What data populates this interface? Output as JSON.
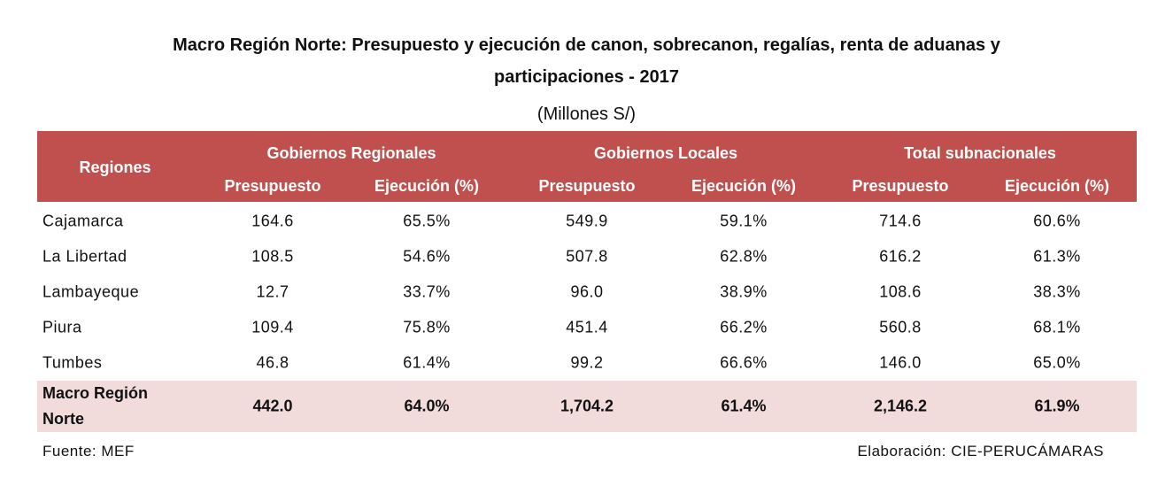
{
  "title_line1": "Macro Región Norte: Presupuesto y ejecución de canon, sobrecanon, regalías, renta de aduanas y",
  "title_line2": "participaciones - 2017",
  "subtitle": "(Millones S/)",
  "colors": {
    "header_bg": "#C0504D",
    "header_text": "#FFFFFF",
    "total_row_bg": "#F2DCDB"
  },
  "chart_data": {
    "type": "table",
    "row_header": "Regiones",
    "groups": [
      "Gobiernos Regionales",
      "Gobiernos Locales",
      "Total subnacionales"
    ],
    "columns": [
      "Presupuesto",
      "Ejecución (%)",
      "Presupuesto",
      "Ejecución (%)",
      "Presupuesto",
      "Ejecución (%)"
    ],
    "rows": [
      {
        "region": "Cajamarca",
        "values": [
          "164.6",
          "65.5%",
          "549.9",
          "59.1%",
          "714.6",
          "60.6%"
        ]
      },
      {
        "region": "La Libertad",
        "values": [
          "108.5",
          "54.6%",
          "507.8",
          "62.8%",
          "616.2",
          "61.3%"
        ]
      },
      {
        "region": "Lambayeque",
        "values": [
          "12.7",
          "33.7%",
          "96.0",
          "38.9%",
          "108.6",
          "38.3%"
        ]
      },
      {
        "region": "Piura",
        "values": [
          "109.4",
          "75.8%",
          "451.4",
          "66.2%",
          "560.8",
          "68.1%"
        ]
      },
      {
        "region": "Tumbes",
        "values": [
          "46.8",
          "61.4%",
          "99.2",
          "66.6%",
          "146.0",
          "65.0%"
        ]
      }
    ],
    "total": {
      "region_line1": "Macro Región",
      "region_line2": "Norte",
      "values": [
        "442.0",
        "64.0%",
        "1,704.2",
        "61.4%",
        "2,146.2",
        "61.9%"
      ]
    }
  },
  "footer": {
    "source": "Fuente: MEF",
    "credit": "Elaboración: CIE-PERUCÁMARAS"
  }
}
